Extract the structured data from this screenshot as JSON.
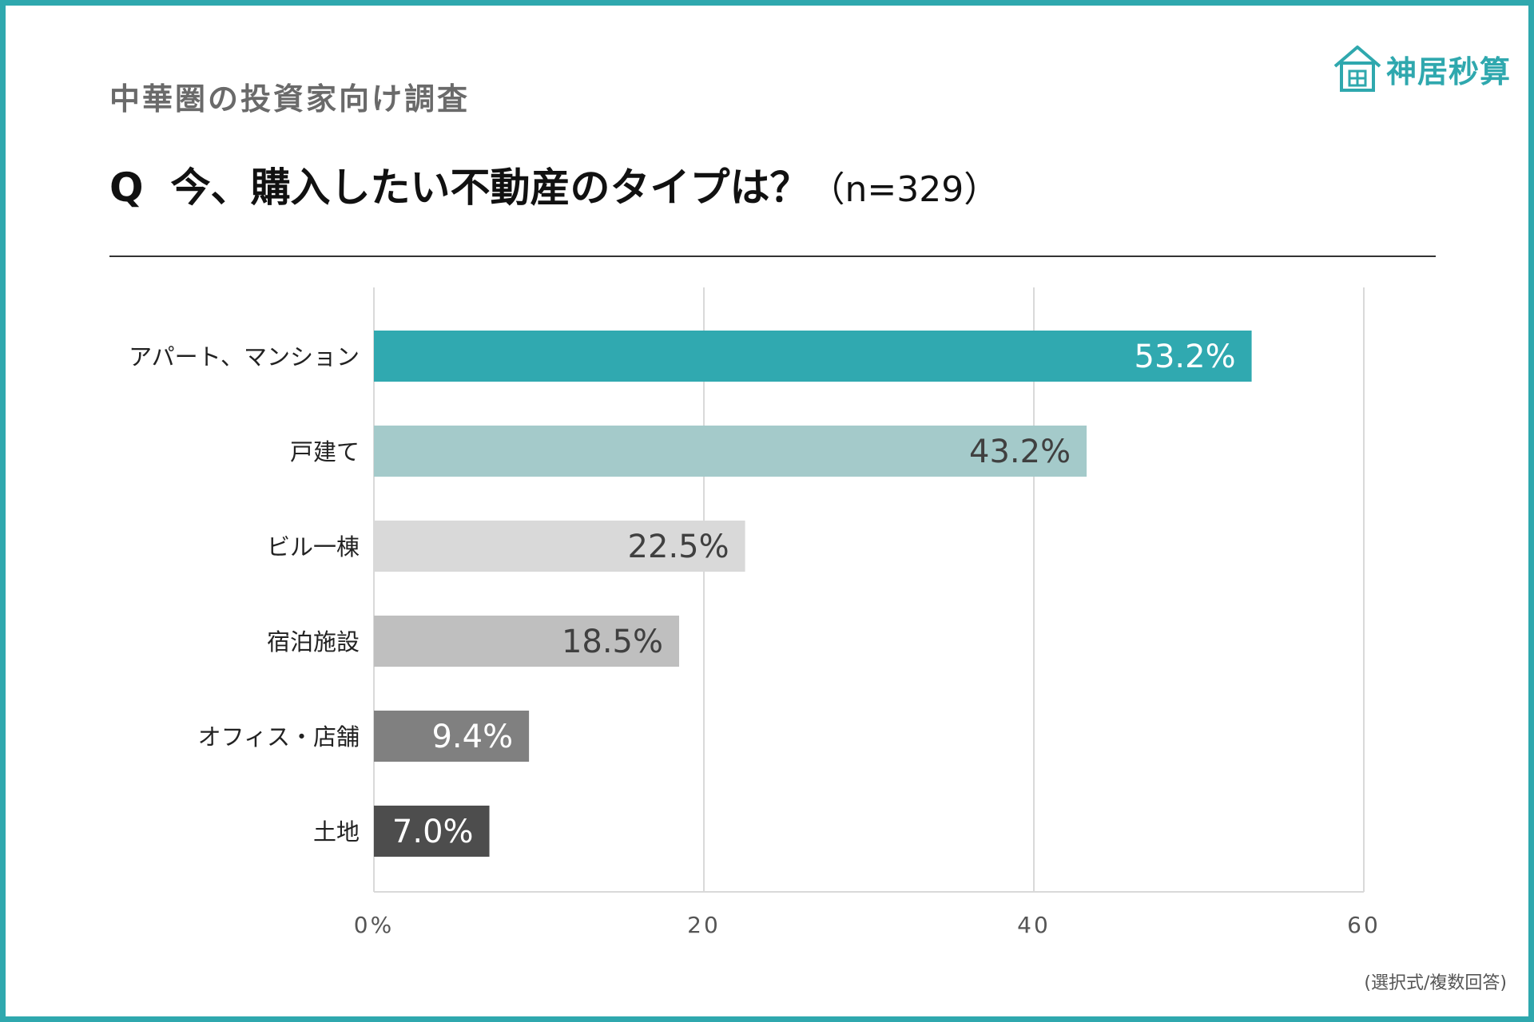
{
  "header": {
    "survey_label": "中華圏の投資家向け調査",
    "question_mark": "Q",
    "question_text": "今、購入したい不動産のタイプは？",
    "sample_size": "（n=329）"
  },
  "brand": {
    "name": "神居秒算",
    "icon": "house-icon",
    "color": "#2fa8ae"
  },
  "note": "(選択式/複数回答)",
  "chart_data": {
    "type": "bar",
    "orientation": "horizontal",
    "categories": [
      "アパート、マンション",
      "戸建て",
      "ビル一棟",
      "宿泊施設",
      "オフィス・店舗",
      "土地"
    ],
    "values": [
      53.2,
      43.2,
      22.5,
      18.5,
      9.4,
      7.0
    ],
    "value_labels": [
      "53.2%",
      "43.2%",
      "22.5%",
      "18.5%",
      "9.4%",
      "7.0%"
    ],
    "bar_colors": [
      "#30a9b0",
      "#a4caca",
      "#d9d9d9",
      "#bfbfbf",
      "#808080",
      "#4d4d4d"
    ],
    "label_colors": [
      "#ffffff",
      "#404040",
      "#404040",
      "#404040",
      "#ffffff",
      "#ffffff"
    ],
    "xlim": [
      0,
      60
    ],
    "xticks": [
      0,
      20,
      40,
      60
    ],
    "xtick_labels": [
      "0%",
      "20",
      "40",
      "60"
    ],
    "grid": true
  }
}
